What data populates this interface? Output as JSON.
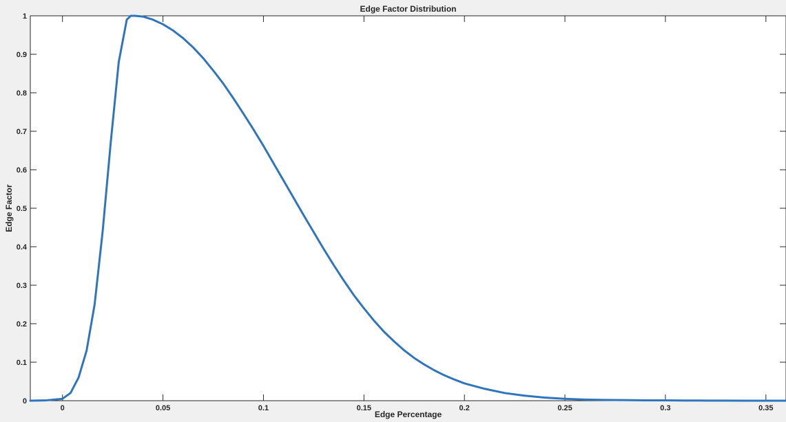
{
  "chart_data": {
    "type": "line",
    "title": "Edge Factor Distribution",
    "xlabel": "Edge Percentage",
    "ylabel": "Edge Factor",
    "xlim": [
      -0.016,
      0.36
    ],
    "ylim": [
      0,
      1
    ],
    "xticks": [
      0,
      0.05,
      0.1,
      0.15,
      0.2,
      0.25,
      0.3,
      0.35
    ],
    "xtick_labels": [
      "0",
      "0.05",
      "0.1",
      "0.15",
      "0.2",
      "0.25",
      "0.3",
      "0.35"
    ],
    "yticks": [
      0,
      0.1,
      0.2,
      0.3,
      0.4,
      0.5,
      0.6,
      0.7,
      0.8,
      0.9,
      1
    ],
    "ytick_labels": [
      "0",
      "0.1",
      "0.2",
      "0.3",
      "0.4",
      "0.5",
      "0.6",
      "0.7",
      "0.8",
      "0.9",
      "1"
    ],
    "grid": false,
    "line_color": "#2f75bd",
    "series": [
      {
        "x": [
          -0.016,
          -0.008,
          0,
          0.004,
          0.008,
          0.012,
          0.016,
          0.02,
          0.024,
          0.028,
          0.032,
          0.034,
          0.036,
          0.04,
          0.045,
          0.05,
          0.055,
          0.06,
          0.065,
          0.07,
          0.075,
          0.08,
          0.085,
          0.09,
          0.095,
          0.1,
          0.105,
          0.11,
          0.115,
          0.12,
          0.125,
          0.13,
          0.135,
          0.14,
          0.145,
          0.15,
          0.155,
          0.16,
          0.165,
          0.17,
          0.175,
          0.18,
          0.185,
          0.19,
          0.195,
          0.2,
          0.21,
          0.22,
          0.23,
          0.24,
          0.25,
          0.26,
          0.27,
          0.28,
          0.29,
          0.3,
          0.31,
          0.32,
          0.33,
          0.34,
          0.35,
          0.36
        ],
        "y": [
          0.0,
          0.001,
          0.005,
          0.02,
          0.06,
          0.13,
          0.25,
          0.44,
          0.67,
          0.88,
          0.99,
          1.0,
          1.0,
          0.998,
          0.99,
          0.978,
          0.962,
          0.942,
          0.918,
          0.89,
          0.858,
          0.824,
          0.786,
          0.746,
          0.705,
          0.662,
          0.617,
          0.572,
          0.527,
          0.482,
          0.438,
          0.394,
          0.352,
          0.312,
          0.274,
          0.24,
          0.208,
          0.179,
          0.154,
          0.131,
          0.111,
          0.094,
          0.079,
          0.066,
          0.055,
          0.045,
          0.031,
          0.02,
          0.013,
          0.008,
          0.005,
          0.003,
          0.002,
          0.0015,
          0.001,
          0.0008,
          0.0005,
          0.0003,
          0.0002,
          0.0001,
          0.0,
          0.0
        ]
      }
    ]
  }
}
